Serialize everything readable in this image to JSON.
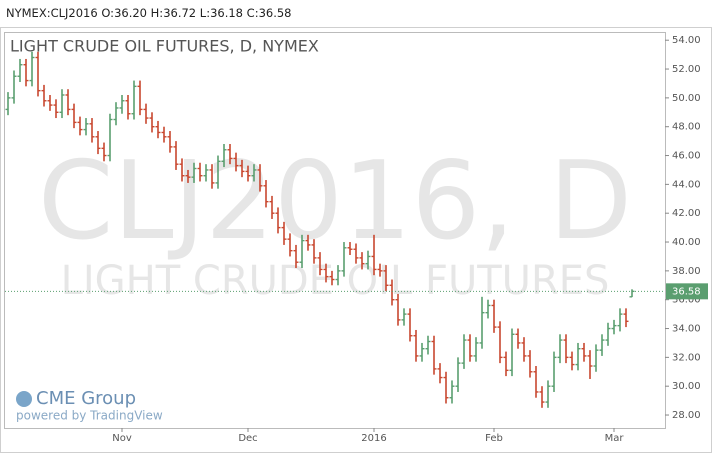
{
  "header": {
    "symbol": "NYMEX:CLJ2016",
    "fields": [
      {
        "label": "O:",
        "value": "36.20"
      },
      {
        "label": "H:",
        "value": "36.72"
      },
      {
        "label": "L:",
        "value": "36.18"
      },
      {
        "label": "C:",
        "value": "36.58"
      }
    ]
  },
  "branding": {
    "logo": "CME Group",
    "powered": "powered by TradingView"
  },
  "chart_data": {
    "type": "ohlc",
    "title": "LIGHT CRUDE OIL FUTURES, D, NYMEX",
    "watermark": [
      "CLJ2016, D",
      "LIGHT CRUDE OIL FUTURES"
    ],
    "up_color": "#5a9e6f",
    "down_color": "#c8472f",
    "categories": [
      null,
      null,
      null,
      null,
      null,
      null,
      null,
      null,
      null,
      null,
      null,
      null,
      null,
      null,
      null,
      null,
      null,
      null,
      null,
      "Nov",
      null,
      null,
      null,
      null,
      null,
      null,
      null,
      null,
      null,
      null,
      null,
      null,
      null,
      null,
      null,
      null,
      null,
      null,
      null,
      null,
      "Dec",
      null,
      null,
      null,
      null,
      null,
      null,
      null,
      null,
      null,
      null,
      null,
      null,
      null,
      null,
      null,
      null,
      null,
      null,
      null,
      null,
      "2016",
      null,
      null,
      null,
      null,
      null,
      null,
      null,
      null,
      null,
      null,
      null,
      null,
      null,
      null,
      null,
      null,
      null,
      null,
      null,
      "Feb",
      null,
      null,
      null,
      null,
      null,
      null,
      null,
      null,
      null,
      null,
      null,
      null,
      null,
      null,
      null,
      null,
      null,
      null,
      null,
      "Mar",
      null,
      null,
      null
    ],
    "open": [
      49.2,
      50.0,
      51.5,
      52.3,
      51.2,
      52.8,
      50.5,
      49.8,
      49.5,
      49.0,
      50.2,
      49.2,
      48.3,
      47.8,
      48.2,
      47.3,
      46.5,
      46.0,
      48.5,
      49.3,
      49.8,
      48.9,
      50.8,
      49.2,
      48.6,
      48.0,
      47.6,
      47.3,
      46.6,
      45.4,
      44.6,
      44.5,
      45.1,
      44.6,
      45.0,
      44.1,
      45.6,
      46.4,
      45.8,
      45.3,
      44.9,
      44.6,
      45.0,
      43.9,
      42.8,
      42.0,
      41.0,
      40.2,
      39.4,
      38.6,
      40.1,
      39.8,
      38.9,
      38.1,
      37.6,
      37.4,
      38.0,
      39.6,
      39.5,
      38.9,
      38.5,
      39.0,
      38.1,
      38.0,
      37.0,
      36.0,
      34.6,
      35.0,
      33.5,
      32.1,
      32.6,
      33.1,
      31.2,
      30.6,
      29.2,
      30.0,
      31.6,
      33.2,
      32.1,
      33.0,
      35.1,
      35.6,
      34.1,
      32.0,
      31.1,
      33.6,
      33.0,
      32.1,
      31.0,
      29.6,
      28.9,
      30.0,
      32.0,
      33.2,
      32.0,
      31.5,
      32.6,
      32.1,
      31.4,
      32.5,
      33.2,
      34.0,
      34.2,
      35.0,
      36.2
    ],
    "high": [
      50.4,
      51.9,
      52.7,
      52.7,
      53.2,
      53.2,
      50.9,
      50.2,
      49.9,
      50.6,
      50.6,
      49.6,
      48.7,
      48.6,
      48.6,
      47.7,
      46.9,
      48.9,
      49.7,
      50.2,
      50.2,
      51.2,
      51.2,
      49.6,
      49.0,
      48.4,
      48.0,
      47.7,
      47.0,
      45.8,
      45.0,
      45.5,
      45.5,
      45.4,
      45.4,
      46.0,
      46.8,
      46.8,
      46.2,
      45.7,
      45.3,
      45.4,
      45.4,
      44.3,
      43.2,
      42.4,
      41.4,
      40.6,
      39.8,
      40.5,
      40.5,
      40.2,
      39.3,
      38.5,
      38.0,
      38.4,
      40.0,
      40.0,
      39.9,
      39.3,
      39.4,
      40.5,
      38.5,
      38.4,
      37.4,
      36.4,
      35.4,
      35.4,
      33.9,
      33.0,
      33.5,
      33.5,
      31.6,
      31.0,
      30.4,
      32.0,
      33.6,
      33.6,
      33.4,
      36.2,
      36.0,
      36.0,
      34.5,
      32.4,
      34.0,
      34.0,
      33.4,
      32.5,
      31.4,
      30.0,
      30.4,
      32.4,
      33.6,
      33.6,
      32.4,
      33.0,
      33.0,
      32.5,
      32.9,
      33.6,
      34.4,
      34.6,
      35.4,
      35.4,
      36.72
    ],
    "low": [
      48.8,
      49.6,
      51.1,
      50.8,
      50.8,
      50.1,
      49.4,
      49.1,
      48.6,
      48.6,
      48.8,
      47.9,
      47.4,
      47.4,
      46.9,
      46.1,
      45.6,
      45.6,
      48.1,
      48.9,
      48.5,
      48.5,
      48.8,
      48.2,
      47.6,
      47.2,
      46.9,
      46.2,
      45.0,
      44.2,
      44.1,
      44.1,
      44.2,
      44.2,
      43.7,
      43.7,
      45.2,
      45.4,
      44.9,
      44.5,
      44.2,
      44.2,
      43.5,
      42.4,
      41.6,
      40.6,
      39.8,
      39.0,
      38.2,
      38.2,
      39.4,
      38.5,
      37.7,
      37.2,
      37.0,
      37.0,
      37.6,
      39.1,
      38.5,
      38.1,
      38.1,
      37.7,
      37.6,
      36.6,
      35.6,
      34.2,
      34.2,
      33.1,
      31.7,
      31.7,
      32.2,
      30.8,
      30.2,
      28.8,
      28.8,
      29.6,
      31.2,
      31.7,
      31.7,
      32.6,
      34.7,
      33.7,
      31.6,
      30.7,
      30.7,
      32.6,
      31.7,
      30.6,
      29.2,
      28.5,
      28.5,
      29.6,
      31.6,
      31.6,
      31.1,
      31.1,
      31.7,
      30.5,
      31.0,
      32.1,
      32.8,
      33.6,
      33.8,
      34.1,
      36.18
    ],
    "close": [
      50.0,
      51.5,
      52.3,
      51.2,
      52.8,
      50.5,
      49.8,
      49.5,
      49.0,
      50.2,
      49.2,
      48.3,
      47.8,
      48.2,
      47.3,
      46.5,
      46.0,
      48.5,
      49.3,
      49.8,
      48.9,
      50.8,
      49.2,
      48.6,
      48.0,
      47.6,
      47.3,
      46.6,
      45.4,
      44.6,
      44.5,
      45.1,
      44.6,
      45.0,
      44.1,
      45.6,
      46.4,
      45.8,
      45.3,
      44.9,
      44.6,
      45.0,
      43.9,
      42.8,
      42.0,
      41.0,
      40.2,
      39.4,
      38.6,
      40.1,
      39.8,
      38.9,
      38.1,
      37.6,
      37.4,
      38.0,
      39.6,
      39.5,
      38.9,
      38.5,
      39.0,
      38.1,
      38.0,
      37.0,
      36.0,
      34.6,
      35.0,
      33.5,
      32.1,
      32.6,
      33.1,
      31.2,
      30.6,
      29.2,
      30.0,
      31.6,
      33.2,
      32.1,
      33.0,
      35.1,
      35.6,
      34.1,
      32.0,
      31.1,
      33.6,
      33.0,
      32.1,
      31.0,
      29.6,
      28.9,
      30.0,
      32.0,
      33.2,
      32.0,
      31.5,
      32.6,
      32.1,
      31.4,
      32.5,
      33.2,
      34.0,
      34.2,
      35.0,
      34.5,
      36.58
    ],
    "last_price": {
      "value": 36.58,
      "label": "36.58"
    },
    "ylim": [
      27.1,
      54.5
    ],
    "yticks": [
      {
        "value": 28,
        "label": "28.00"
      },
      {
        "value": 30,
        "label": "30.00"
      },
      {
        "value": 32,
        "label": "32.00"
      },
      {
        "value": 34,
        "label": "34.00"
      },
      {
        "value": 36,
        "label": "36.00"
      },
      {
        "value": 38,
        "label": "38.00"
      },
      {
        "value": 40,
        "label": "40.00"
      },
      {
        "value": 42,
        "label": "42.00"
      },
      {
        "value": 44,
        "label": "44.00"
      },
      {
        "value": 46,
        "label": "46.00"
      },
      {
        "value": 48,
        "label": "48.00"
      },
      {
        "value": 50,
        "label": "50.00"
      },
      {
        "value": 52,
        "label": "52.00"
      },
      {
        "value": 54,
        "label": "54.00"
      }
    ]
  }
}
